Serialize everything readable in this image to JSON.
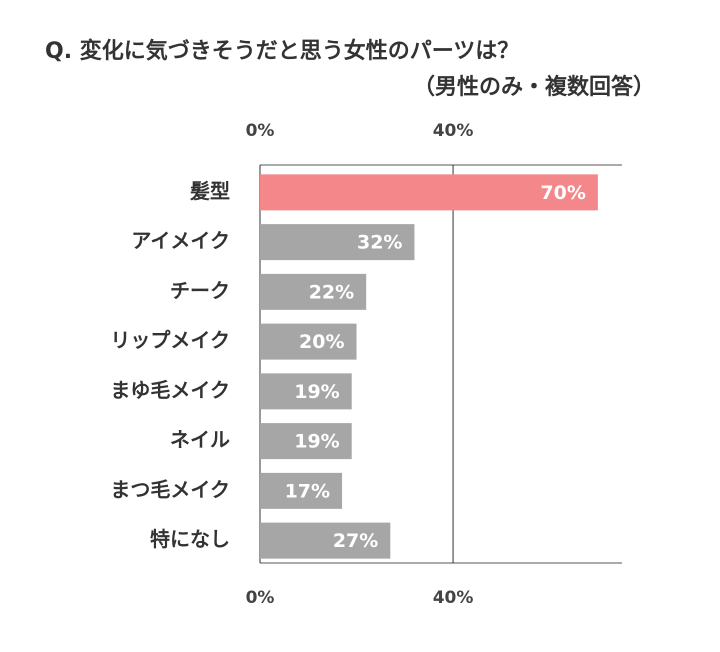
{
  "chart_data": {
    "type": "bar",
    "orientation": "horizontal",
    "title": "Q. 変化に気づきそうだと思う女性のパーツは？",
    "subtitle": "（男性のみ・複数回答）",
    "categories": [
      "髪型",
      "アイメイク",
      "チーク",
      "リップメイク",
      "まゆ毛メイク",
      "ネイル",
      "まつ毛メイク",
      "特になし"
    ],
    "values": [
      70,
      32,
      22,
      20,
      19,
      19,
      17,
      27
    ],
    "value_labels": [
      "70%",
      "32%",
      "22%",
      "20%",
      "19%",
      "19%",
      "17%",
      "27%"
    ],
    "colors": [
      "#f4878a",
      "#a6a6a6",
      "#a6a6a6",
      "#a6a6a6",
      "#a6a6a6",
      "#a6a6a6",
      "#a6a6a6",
      "#a6a6a6"
    ],
    "xlim": [
      0,
      75
    ],
    "xticks": [
      {
        "value": 0,
        "label": "0%"
      },
      {
        "value": 40,
        "label": "40%"
      }
    ],
    "grid": true
  }
}
